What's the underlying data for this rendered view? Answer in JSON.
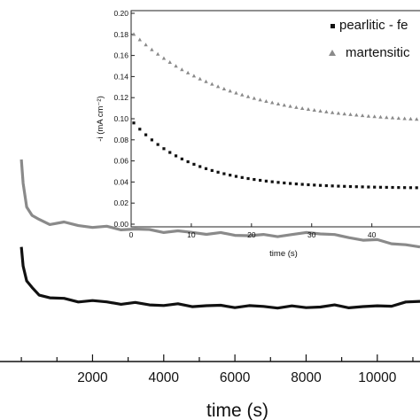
{
  "chart_data": [
    {
      "type": "line",
      "role": "main",
      "xlabel": "time (s)",
      "ylabel": "",
      "xlim": [
        -600,
        11200
      ],
      "ylim": [
        0,
        1
      ],
      "x_ticks": [
        2000,
        4000,
        6000,
        8000,
        10000
      ],
      "x_tick_labels": [
        "2000",
        "4000",
        "6000",
        "8000",
        "10000"
      ],
      "series": [
        {
          "color": "#8a8a8a",
          "x": [
            0,
            50,
            150,
            300,
            500,
            800,
            1200,
            1600,
            2000,
            2400,
            2800,
            3200,
            3600,
            4000,
            4400,
            4800,
            5200,
            5600,
            6000,
            6400,
            6800,
            7200,
            7600,
            8000,
            8400,
            8800,
            9200,
            9600,
            10000,
            10400,
            10800,
            11200
          ],
          "y": [
            0.57,
            0.5,
            0.44,
            0.41,
            0.4,
            0.39,
            0.39,
            0.385,
            0.38,
            0.378,
            0.375,
            0.373,
            0.37,
            0.368,
            0.366,
            0.364,
            0.362,
            0.36,
            0.358,
            0.356,
            0.355,
            0.356,
            0.357,
            0.362,
            0.364,
            0.355,
            0.35,
            0.345,
            0.34,
            0.335,
            0.33,
            0.32
          ]
        },
        {
          "color": "#111111",
          "x": [
            0,
            50,
            150,
            300,
            500,
            800,
            1200,
            1600,
            2000,
            2400,
            2800,
            3200,
            3600,
            4000,
            4400,
            4800,
            5200,
            5600,
            6000,
            6400,
            6800,
            7200,
            7600,
            8000,
            8400,
            8800,
            9200,
            9600,
            10000,
            10400,
            10800,
            11200
          ],
          "y": [
            0.32,
            0.27,
            0.23,
            0.205,
            0.19,
            0.18,
            0.175,
            0.172,
            0.17,
            0.167,
            0.165,
            0.163,
            0.161,
            0.16,
            0.159,
            0.158,
            0.157,
            0.156,
            0.156,
            0.155,
            0.155,
            0.154,
            0.153,
            0.154,
            0.155,
            0.156,
            0.155,
            0.154,
            0.155,
            0.16,
            0.165,
            0.17
          ]
        }
      ]
    },
    {
      "type": "scatter",
      "role": "inset",
      "xlabel": "time (s)",
      "ylabel": "-i (mA cm⁻²)",
      "xlim": [
        0,
        48
      ],
      "ylim": [
        0,
        0.2
      ],
      "x_ticks": [
        0,
        10,
        20,
        30,
        40
      ],
      "x_tick_labels": [
        "0",
        "10",
        "20",
        "30",
        "40"
      ],
      "y_ticks": [
        0,
        0.02,
        0.04,
        0.06,
        0.08,
        0.1,
        0.12,
        0.14,
        0.16,
        0.18,
        0.2
      ],
      "y_tick_labels": [
        "0.00",
        "0.02",
        "0.04",
        "0.06",
        "0.08",
        "0.10",
        "0.12",
        "0.14",
        "0.16",
        "0.18",
        "0.20"
      ],
      "legend_position": "top-right",
      "series": [
        {
          "name": "pearlitic - fe",
          "marker": "square",
          "color": "#111111",
          "x0": 0,
          "x_step": 1,
          "count": 48,
          "model": {
            "a": 0.034,
            "b": 0.062,
            "tau": 10
          }
        },
        {
          "name": "martensitic",
          "marker": "triangle",
          "color": "#8a8a8a",
          "x0": 0,
          "x_step": 1,
          "count": 48,
          "model": {
            "a": 0.095,
            "b": 0.085,
            "tau": 16
          }
        }
      ]
    }
  ]
}
